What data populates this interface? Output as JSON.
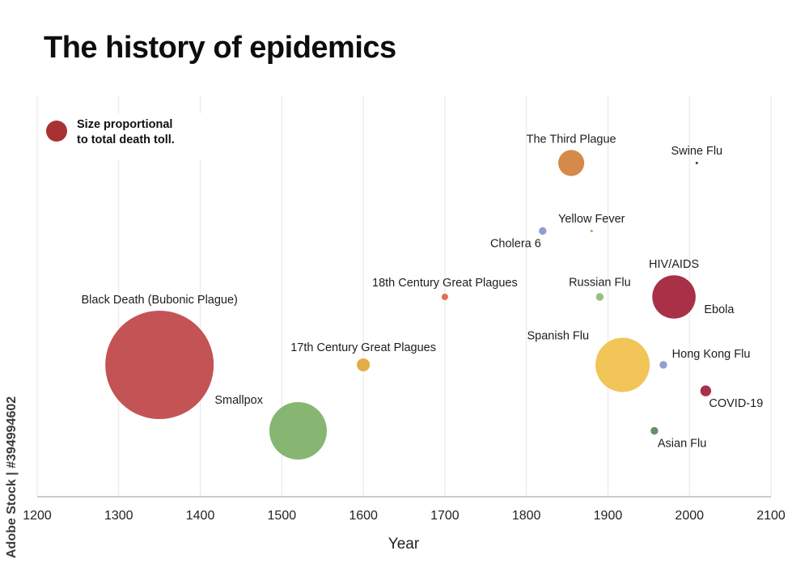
{
  "title": "The history of epidemics",
  "watermark": "Adobe Stock | #394994602",
  "chart_data": {
    "type": "scatter",
    "bubble": true,
    "title": "The history of epidemics",
    "xlabel": "Year",
    "ylabel": "",
    "xlim": [
      1200,
      2100
    ],
    "xticks": [
      1200,
      1300,
      1400,
      1500,
      1600,
      1700,
      1800,
      1900,
      2000,
      2100
    ],
    "grid": "vertical",
    "legend": {
      "text_line1": "Size proportional",
      "text_line2": "to total death toll.",
      "placement": "top-left",
      "color": "#a83232"
    },
    "points": [
      {
        "name": "Black Death (Bubonic Plague)",
        "x": 1350,
        "y": 0.33,
        "size": 1.0,
        "color": "#c04a4c",
        "label_side": "top"
      },
      {
        "name": "Smallpox",
        "x": 1520,
        "y": 0.165,
        "size": 0.53,
        "color": "#7fb26a",
        "label_side": "top-left"
      },
      {
        "name": "17th Century Great Plagues",
        "x": 1600,
        "y": 0.33,
        "size": 0.12,
        "color": "#e0aa3a",
        "label_side": "top"
      },
      {
        "name": "18th Century Great Plagues",
        "x": 1700,
        "y": 0.5,
        "size": 0.06,
        "color": "#dc6d4a",
        "label_side": "top"
      },
      {
        "name": "Cholera 6",
        "x": 1820,
        "y": 0.665,
        "size": 0.07,
        "color": "#8b97cf",
        "label_side": "bottom-left"
      },
      {
        "name": "The Third Plague",
        "x": 1855,
        "y": 0.835,
        "size": 0.24,
        "color": "#d2843e",
        "label_side": "top"
      },
      {
        "name": "Yellow Fever",
        "x": 1880,
        "y": 0.665,
        "size": 0.02,
        "color": "#d2843e",
        "label_side": "top"
      },
      {
        "name": "Russian Flu",
        "x": 1890,
        "y": 0.5,
        "size": 0.07,
        "color": "#8fbf72",
        "label_side": "top"
      },
      {
        "name": "Spanish Flu",
        "x": 1918,
        "y": 0.33,
        "size": 0.5,
        "color": "#f0c24e",
        "label_side": "top-left"
      },
      {
        "name": "Asian Flu",
        "x": 1957,
        "y": 0.165,
        "size": 0.07,
        "color": "#5f8a5e",
        "label_side": "bottom-right"
      },
      {
        "name": "Hong Kong Flu",
        "x": 1968,
        "y": 0.33,
        "size": 0.07,
        "color": "#8b97cf",
        "label_side": "right"
      },
      {
        "name": "HIV/AIDS",
        "x": 1981,
        "y": 0.5,
        "size": 0.4,
        "color": "#a3263e",
        "label_side": "top"
      },
      {
        "name": "Ebola",
        "x": 2014,
        "y": 0.5,
        "size": 0.0,
        "color": "#a3263e",
        "label_side": "bottom-right"
      },
      {
        "name": "Swine Flu",
        "x": 2009,
        "y": 0.835,
        "size": 0.02,
        "color": "#333333",
        "label_side": "top"
      },
      {
        "name": "COVID-19",
        "x": 2020,
        "y": 0.265,
        "size": 0.1,
        "color": "#a3263e",
        "label_side": "bottom-right"
      }
    ]
  }
}
